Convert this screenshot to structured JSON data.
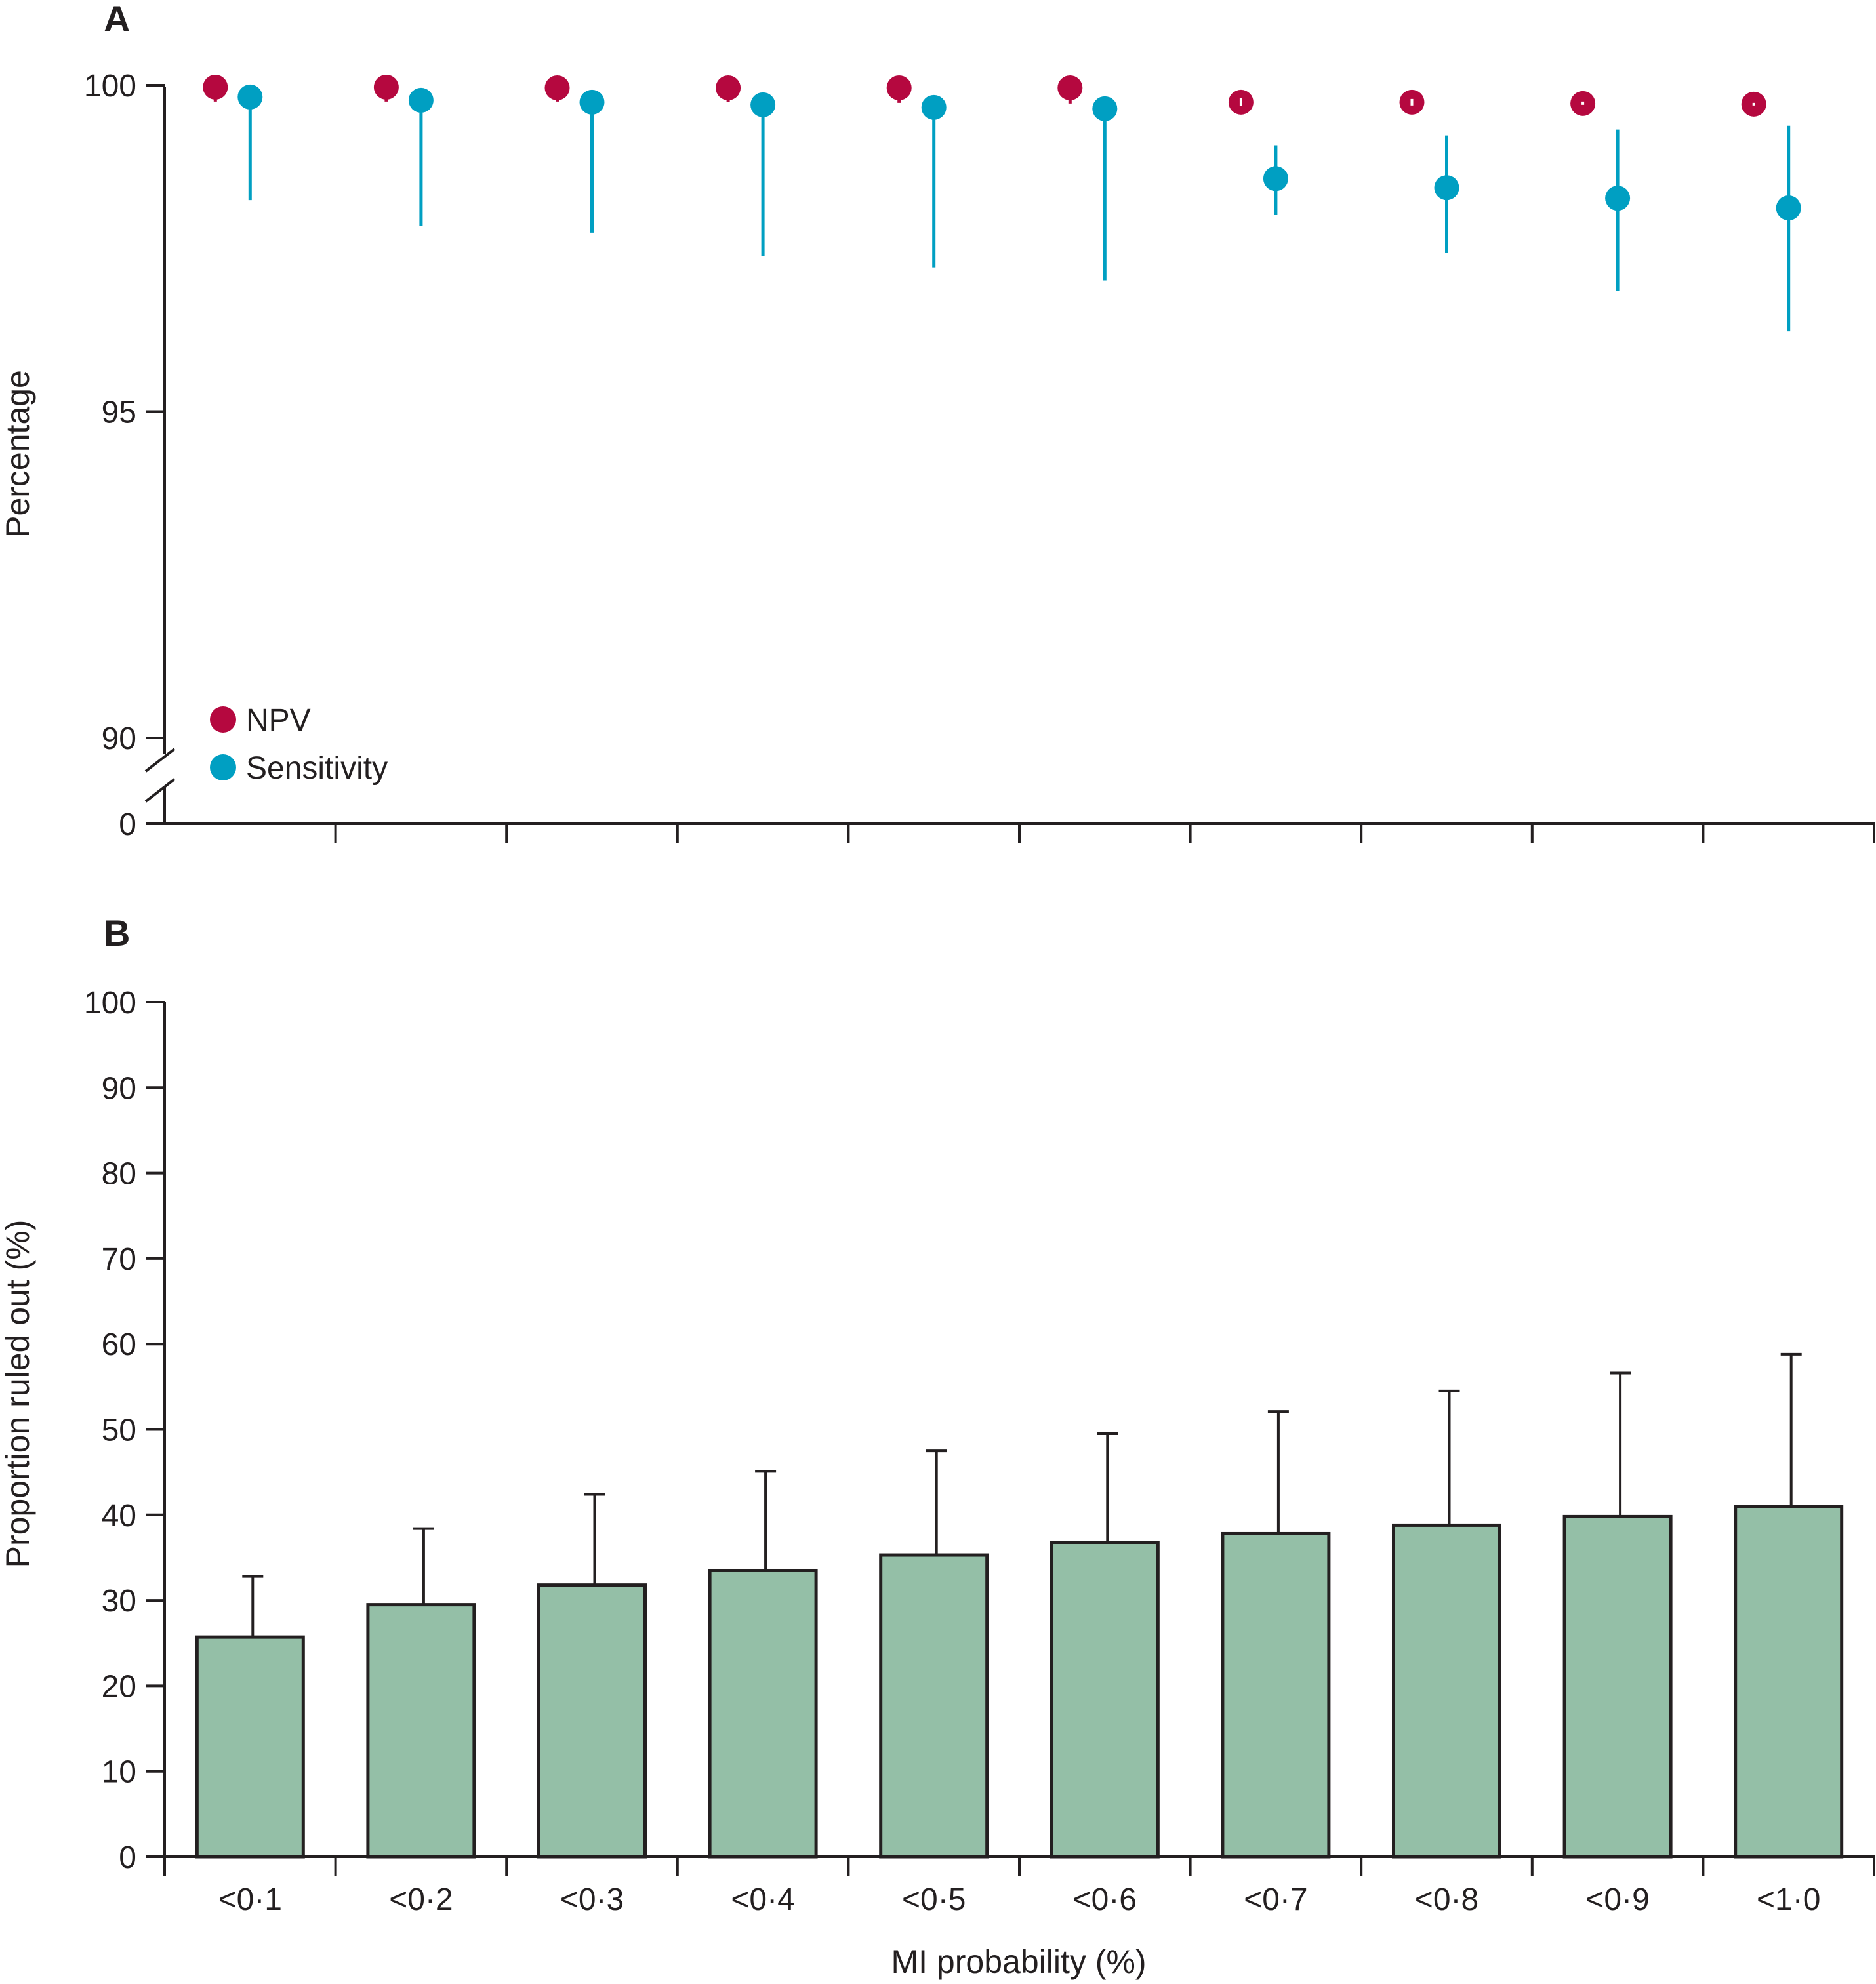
{
  "chart_data": [
    {
      "panel": "A",
      "type": "scatter",
      "categories": [
        "<0·1",
        "<0·2",
        "<0·3",
        "<0·4",
        "<0·5",
        "<0·6",
        "<0·7",
        "<0·8",
        "<0·9",
        "<1·0"
      ],
      "ylabel": "Percentage",
      "y_ticks": [
        "0",
        "90",
        "95",
        "100"
      ],
      "ylim": [
        90,
        100
      ],
      "axis_break": true,
      "grid": false,
      "legend_position": "bottom-left",
      "series": [
        {
          "name": "NPV",
          "color": "#b5083f",
          "values": [
            99.97,
            99.97,
            99.96,
            99.96,
            99.96,
            99.96,
            99.74,
            99.74,
            99.72,
            99.71
          ],
          "lower": [
            99.75,
            99.75,
            99.75,
            99.74,
            99.73,
            99.72,
            99.68,
            99.69,
            99.7,
            99.69
          ],
          "upper": [
            99.97,
            99.97,
            99.96,
            99.96,
            99.96,
            99.96,
            99.8,
            99.79,
            99.75,
            99.73
          ]
        },
        {
          "name": "Sensitivity",
          "color": "#009fc2",
          "values": [
            99.82,
            99.77,
            99.74,
            99.7,
            99.66,
            99.64,
            98.57,
            98.43,
            98.27,
            98.12
          ],
          "lower": [
            98.24,
            97.84,
            97.74,
            97.38,
            97.21,
            97.01,
            98.01,
            97.43,
            96.85,
            96.23
          ],
          "upper": [
            99.82,
            99.77,
            99.74,
            99.7,
            99.66,
            99.64,
            99.08,
            99.23,
            99.32,
            99.38
          ]
        }
      ]
    },
    {
      "panel": "B",
      "type": "bar",
      "categories": [
        "<0·1",
        "<0·2",
        "<0·3",
        "<0·4",
        "<0·5",
        "<0·6",
        "<0·7",
        "<0·8",
        "<0·9",
        "<1·0"
      ],
      "values": [
        25.7,
        29.5,
        31.8,
        33.5,
        35.3,
        36.8,
        37.8,
        38.8,
        39.8,
        41.0
      ],
      "upper": [
        32.8,
        38.4,
        42.4,
        45.1,
        47.5,
        49.5,
        52.1,
        54.5,
        56.6,
        58.8
      ],
      "color": "#94bfa7",
      "xlabel": "MI probability (%)",
      "ylabel": "Proportion ruled out (%)",
      "ylim": [
        0,
        100
      ],
      "y_ticks": [
        "0",
        "10",
        "20",
        "30",
        "40",
        "50",
        "60",
        "70",
        "80",
        "90",
        "100"
      ],
      "grid": false
    }
  ]
}
